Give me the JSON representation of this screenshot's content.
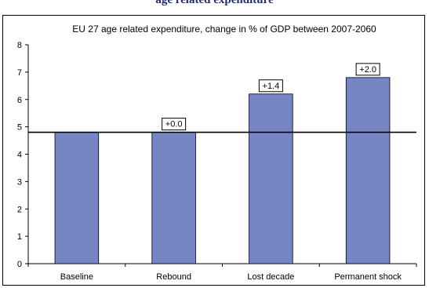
{
  "page": {
    "heading": "age related expenditure"
  },
  "chart_data": {
    "type": "bar",
    "title": "EU 27 age related expenditure, change in % of GDP between 2007-2060",
    "categories": [
      "Baseline",
      "Rebound",
      "Lost decade",
      "Permanent shock"
    ],
    "values": [
      4.8,
      4.8,
      6.2,
      6.8
    ],
    "data_labels": [
      "",
      "+0.0",
      "+1.4",
      "+2.0"
    ],
    "reference_line": 4.8,
    "ylim": [
      0,
      8
    ],
    "yticks": [
      0,
      1,
      2,
      3,
      4,
      5,
      6,
      7,
      8
    ],
    "xlabel": "",
    "ylabel": "",
    "grid": false,
    "bar_color": "#7685c4",
    "bar_edge_color": "#000000"
  }
}
